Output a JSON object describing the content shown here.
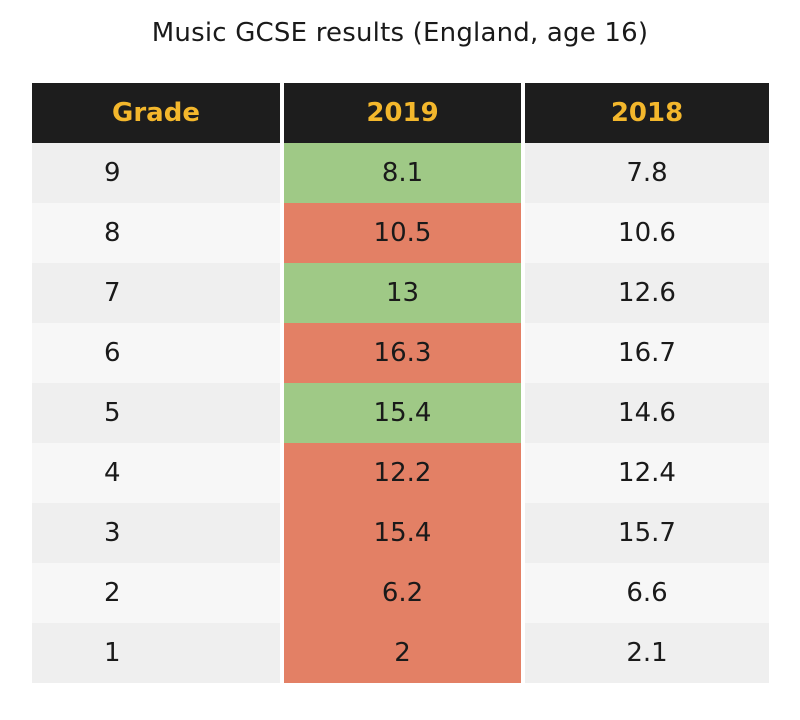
{
  "chart_data": {
    "type": "table",
    "title": "Music GCSE results (England, age 16)",
    "columns": [
      "Grade",
      "2019",
      "2018"
    ],
    "rows": [
      {
        "grade": "9",
        "y2019": "8.1",
        "y2018": "7.8",
        "status": "up"
      },
      {
        "grade": "8",
        "y2019": "10.5",
        "y2018": "10.6",
        "status": "down"
      },
      {
        "grade": "7",
        "y2019": "13",
        "y2018": "12.6",
        "status": "up"
      },
      {
        "grade": "6",
        "y2019": "16.3",
        "y2018": "16.7",
        "status": "down"
      },
      {
        "grade": "5",
        "y2019": "15.4",
        "y2018": "14.6",
        "status": "up"
      },
      {
        "grade": "4",
        "y2019": "12.2",
        "y2018": "12.4",
        "status": "down"
      },
      {
        "grade": "3",
        "y2019": "15.4",
        "y2018": "15.7",
        "status": "down"
      },
      {
        "grade": "2",
        "y2019": "6.2",
        "y2018": "6.6",
        "status": "down"
      },
      {
        "grade": "1",
        "y2019": "2",
        "y2018": "2.1",
        "status": "down"
      }
    ],
    "colors": {
      "header_bg": "#1d1d1d",
      "header_text": "#f3b72c",
      "increase": "#9fc986",
      "decrease": "#e38065",
      "row_a": "#efefef",
      "row_b": "#f7f7f7"
    }
  }
}
